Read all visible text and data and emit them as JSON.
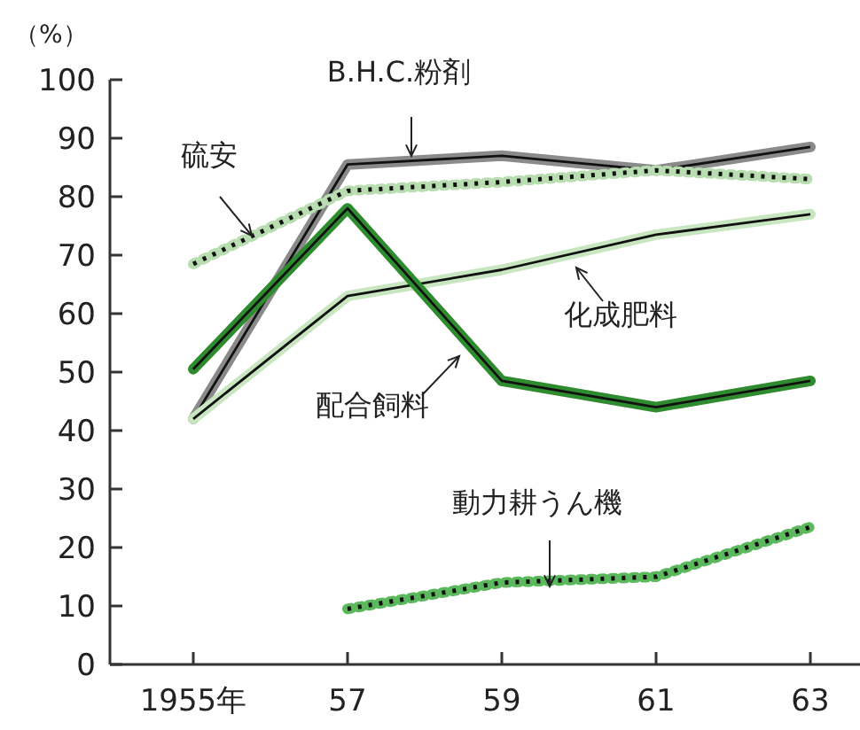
{
  "chart_data": {
    "type": "line",
    "ylabel": "（%）",
    "categories": [
      "1955年",
      "57",
      "59",
      "61",
      "63"
    ],
    "ylim": [
      0,
      100
    ],
    "yticks": [
      0,
      10,
      20,
      30,
      40,
      50,
      60,
      70,
      80,
      90,
      100
    ],
    "grid": false,
    "series": [
      {
        "name": "B.H.C.粉剤",
        "color": "#8a8a8a",
        "line_style": "solid",
        "values": [
          42,
          85.5,
          87,
          84.5,
          88.5
        ]
      },
      {
        "name": "硫安",
        "color": "#b8ddb0",
        "line_style": "dotted",
        "values": [
          68.5,
          81,
          82.5,
          84.5,
          83
        ]
      },
      {
        "name": "化成肥料",
        "color": "#c8e6c0",
        "line_style": "solid",
        "values": [
          42,
          63,
          67.5,
          73.5,
          77
        ]
      },
      {
        "name": "配合飼料",
        "color": "#2e8b2e",
        "line_style": "solid",
        "values": [
          50.5,
          78,
          48.5,
          44,
          48.5
        ]
      },
      {
        "name": "動力耕うん機",
        "color": "#5cb85c",
        "line_style": "dotted",
        "values": [
          null,
          9.5,
          14,
          15,
          23.5
        ]
      }
    ]
  }
}
